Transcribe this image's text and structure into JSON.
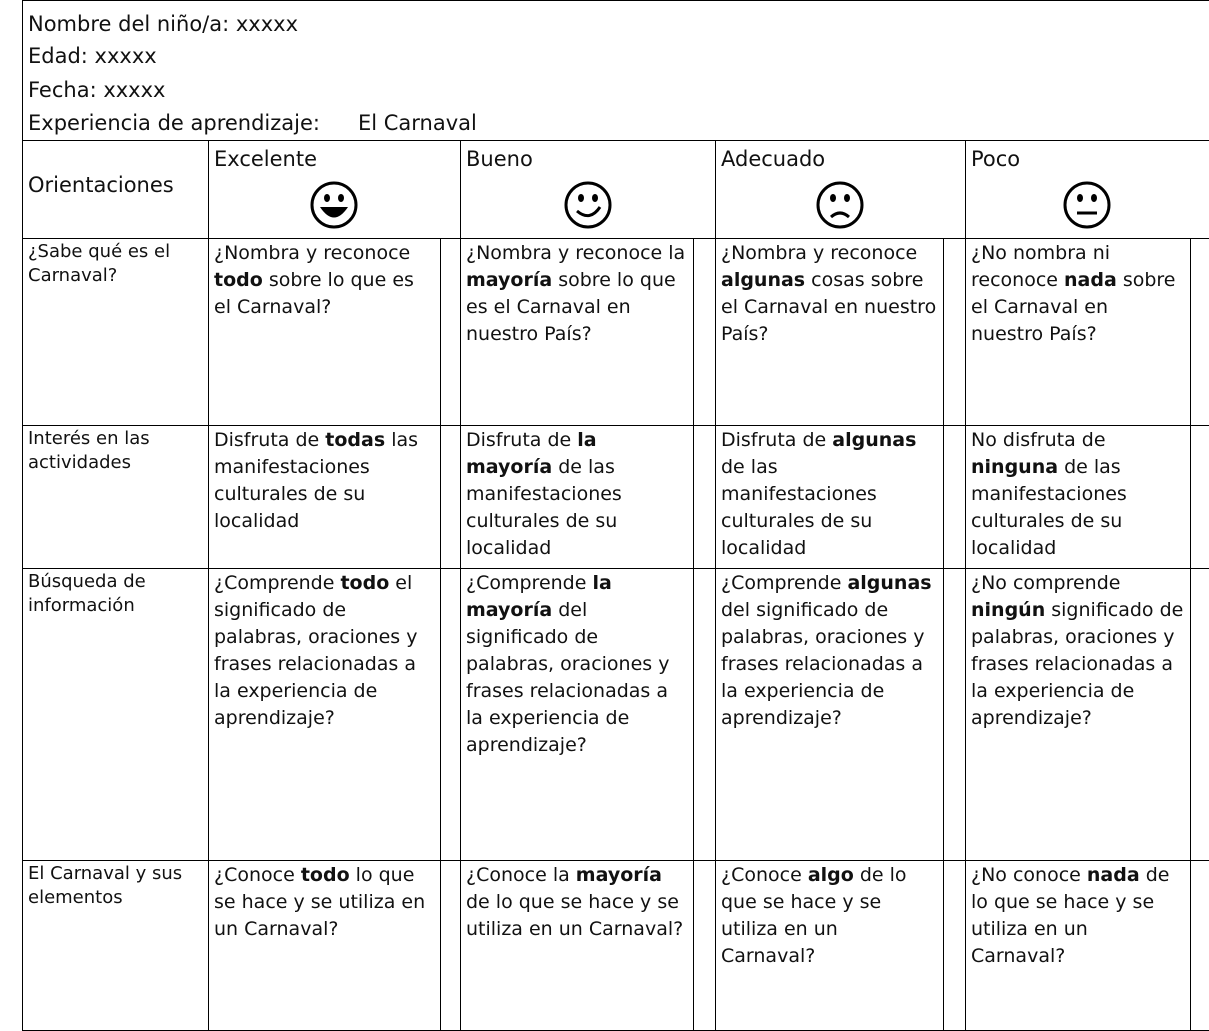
{
  "header": {
    "name": "Nombre del niño/a: xxxxx",
    "age": "Edad: xxxxx",
    "date": "Fecha: xxxxx",
    "experience_label": "Experiencia de aprendizaje:",
    "experience": "El Carnaval"
  },
  "table": {
    "corner": "Orientaciones",
    "levels": [
      "Excelente",
      "Bueno",
      "Adecuado",
      "Poco"
    ],
    "rows": [
      {
        "criterion": "¿Sabe qué es el Carnaval?",
        "cells": [
          {
            "before": "¿Nombra y reconoce ",
            "bold": "todo",
            "after": " sobre lo que es el Carnaval?"
          },
          {
            "before": "¿Nombra y reconoce la ",
            "bold": "mayoría",
            "after": " sobre lo que es el Carnaval en nuestro País?"
          },
          {
            "before": "¿Nombra y reconoce ",
            "bold": "algunas",
            "after": " cosas sobre el Carnaval en nuestro País?"
          },
          {
            "before": "¿No nombra ni reconoce ",
            "bold": "nada",
            "after": " sobre el Carnaval en nuestro País?"
          }
        ]
      },
      {
        "criterion": "Interés en las actividades",
        "cells": [
          {
            "before": "Disfruta de ",
            "bold": "todas",
            "after": " las manifestaciones culturales de su localidad"
          },
          {
            "before": "Disfruta de ",
            "bold": "la mayoría",
            "after": " de las manifestaciones culturales de su localidad"
          },
          {
            "before": "Disfruta de ",
            "bold": "algunas",
            "after": " de las manifestaciones culturales de su localidad"
          },
          {
            "before": "No disfruta de ",
            "bold": "ninguna",
            "after": " de las manifestaciones culturales de su localidad"
          }
        ]
      },
      {
        "criterion": "Búsqueda de información",
        "cells": [
          {
            "before": "¿Comprende ",
            "bold": "todo",
            "after": " el significado de palabras, oraciones y frases relacionadas a la experiencia de aprendizaje?"
          },
          {
            "before": "¿Comprende ",
            "bold": "la mayoría",
            "after": " del significado de palabras, oraciones y frases relacionadas a la experiencia de aprendizaje?"
          },
          {
            "before": "¿Comprende ",
            "bold": "algunas",
            "after": " del significado de palabras, oraciones y frases relacionadas a la experiencia de aprendizaje?"
          },
          {
            "before": "¿No comprende ",
            "bold": "ningún",
            "after": " significado de palabras, oraciones y frases relacionadas a la experiencia de aprendizaje?"
          }
        ]
      },
      {
        "criterion": "El Carnaval y sus elementos",
        "cells": [
          {
            "before": "¿Conoce ",
            "bold": "todo",
            "after": " lo que se hace y se utiliza en un Carnaval?"
          },
          {
            "before": "¿Conoce la ",
            "bold": "mayoría",
            "after": " de lo que se hace y se utiliza en un Carnaval?"
          },
          {
            "before": "¿Conoce ",
            "bold": "algo",
            "after": " de lo que se hace y se utiliza en un Carnaval?"
          },
          {
            "before": "¿No conoce ",
            "bold": "nada",
            "after": " de lo que se hace y se utiliza en un Carnaval?"
          }
        ]
      }
    ]
  }
}
